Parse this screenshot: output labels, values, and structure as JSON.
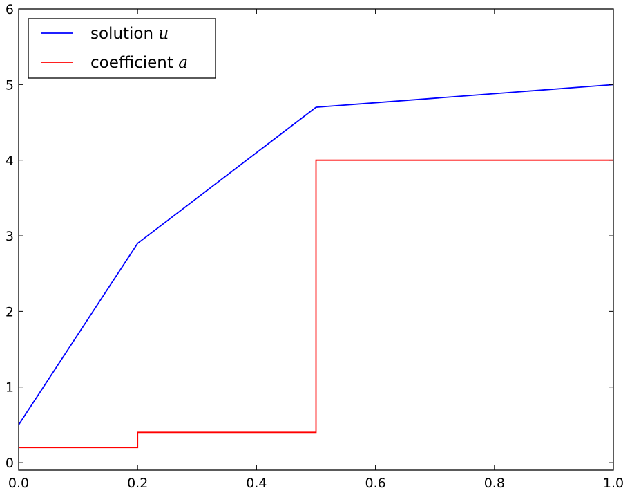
{
  "chart_data": {
    "type": "line",
    "title": "",
    "xlabel": "",
    "ylabel": "",
    "xlim": [
      0.0,
      1.0
    ],
    "ylim": [
      -0.1,
      6.0
    ],
    "x_ticks": [
      0.0,
      0.2,
      0.4,
      0.6,
      0.8,
      1.0
    ],
    "x_tick_labels": [
      "0.0",
      "0.2",
      "0.4",
      "0.6",
      "0.8",
      "1.0"
    ],
    "y_ticks": [
      0,
      1,
      2,
      3,
      4,
      5,
      6
    ],
    "y_tick_labels": [
      "0",
      "1",
      "2",
      "3",
      "4",
      "5",
      "6"
    ],
    "grid": false,
    "legend_position": "top-left",
    "series": [
      {
        "name": "solution u",
        "label_text": "solution",
        "label_math": "u",
        "color": "#0000ff",
        "step": false,
        "x": [
          0.0,
          0.2,
          0.5,
          1.0
        ],
        "y": [
          0.5,
          2.9,
          4.7,
          5.0
        ]
      },
      {
        "name": "coefficient a",
        "label_text": "coefficient",
        "label_math": "a",
        "color": "#ff0000",
        "step": true,
        "x": [
          0.0,
          0.2,
          0.2,
          0.5,
          0.5,
          1.0
        ],
        "y": [
          0.2,
          0.2,
          0.4,
          0.4,
          4.0,
          4.0
        ]
      }
    ]
  }
}
